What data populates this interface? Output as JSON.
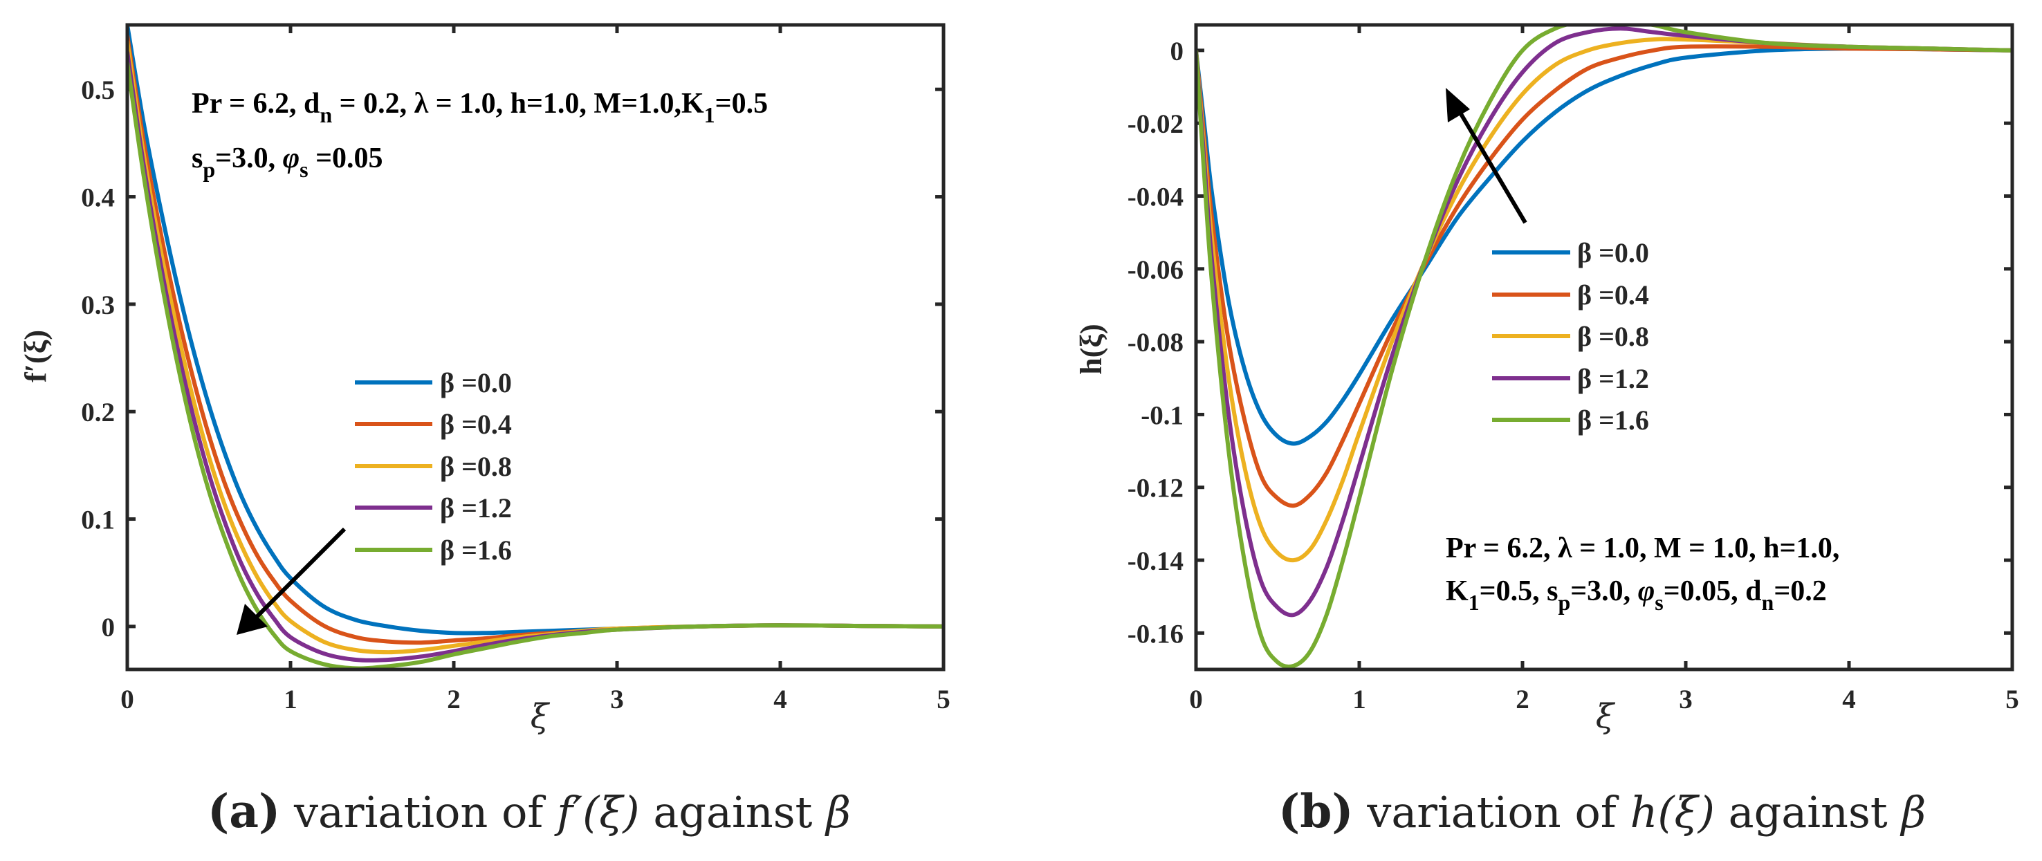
{
  "chart_data": [
    {
      "type": "line",
      "title": "",
      "xlabel": "ξ",
      "ylabel": "f′(ξ)",
      "xlim": [
        0,
        5
      ],
      "ylim": [
        -0.04,
        0.56
      ],
      "xticks": [
        "0",
        "1",
        "2",
        "3",
        "4",
        "5"
      ],
      "yticks": [
        "0",
        "0.1",
        "0.2",
        "0.3",
        "0.4",
        "0.5"
      ],
      "annotation": [
        "Pr = 6.2, d",
        "n",
        " = 0.2, λ = 1.0, h=1.0, M=1.0,K",
        "1",
        "=0.5",
        "s",
        "p",
        "=3.0, ",
        "φ",
        "s",
        " =0.05"
      ],
      "caption": {
        "label": "(a)",
        "text": " variation of ",
        "func": "f′(ξ)",
        "tail": " against ",
        "param": "β"
      },
      "legend": [
        "β =0.0",
        "β =0.4",
        "β =0.8",
        "β =1.2",
        "β =1.6"
      ],
      "series": [
        {
          "name": "β =0.0",
          "color": "#0072BD",
          "x": [
            0,
            0.1,
            0.2,
            0.3,
            0.4,
            0.5,
            0.6,
            0.7,
            0.8,
            0.9,
            1.0,
            1.2,
            1.4,
            1.6,
            1.8,
            2.0,
            2.2,
            2.4,
            2.6,
            2.8,
            3.0,
            3.5,
            4.0,
            4.5,
            5.0
          ],
          "y": [
            0.56,
            0.469,
            0.392,
            0.322,
            0.26,
            0.206,
            0.16,
            0.121,
            0.09,
            0.065,
            0.045,
            0.019,
            0.006,
            0.0,
            -0.004,
            -0.006,
            -0.006,
            -0.005,
            -0.004,
            -0.003,
            -0.002,
            0.0,
            0.001,
            0.0005,
            0.0
          ]
        },
        {
          "name": "β =0.4",
          "color": "#D95319",
          "x": [
            0,
            0.1,
            0.2,
            0.3,
            0.4,
            0.5,
            0.6,
            0.7,
            0.8,
            0.9,
            1.0,
            1.2,
            1.4,
            1.6,
            1.8,
            2.0,
            2.2,
            2.4,
            2.6,
            2.8,
            3.0,
            3.5,
            4.0,
            4.5,
            5.0
          ],
          "y": [
            0.55,
            0.452,
            0.37,
            0.297,
            0.233,
            0.178,
            0.132,
            0.095,
            0.065,
            0.042,
            0.024,
            0.001,
            -0.01,
            -0.014,
            -0.015,
            -0.013,
            -0.011,
            -0.008,
            -0.006,
            -0.004,
            -0.002,
            0.0,
            0.001,
            0.0005,
            0.0
          ]
        },
        {
          "name": "β =0.8",
          "color": "#EDB120",
          "x": [
            0,
            0.1,
            0.2,
            0.3,
            0.4,
            0.5,
            0.6,
            0.7,
            0.8,
            0.9,
            1.0,
            1.2,
            1.4,
            1.6,
            1.8,
            2.0,
            2.2,
            2.4,
            2.6,
            2.8,
            3.0,
            3.5,
            4.0,
            4.5,
            5.0
          ],
          "y": [
            0.545,
            0.44,
            0.354,
            0.28,
            0.214,
            0.158,
            0.112,
            0.075,
            0.045,
            0.022,
            0.005,
            -0.014,
            -0.022,
            -0.024,
            -0.022,
            -0.018,
            -0.014,
            -0.01,
            -0.007,
            -0.004,
            -0.002,
            0.0,
            0.001,
            0.0005,
            0.0
          ]
        },
        {
          "name": "β =1.2",
          "color": "#7E2F8E",
          "x": [
            0,
            0.1,
            0.2,
            0.3,
            0.4,
            0.5,
            0.6,
            0.7,
            0.8,
            0.9,
            1.0,
            1.2,
            1.4,
            1.6,
            1.8,
            2.0,
            2.2,
            2.4,
            2.6,
            2.8,
            3.0,
            3.5,
            4.0,
            4.5,
            5.0
          ],
          "y": [
            0.535,
            0.43,
            0.341,
            0.264,
            0.198,
            0.142,
            0.096,
            0.058,
            0.029,
            0.007,
            -0.01,
            -0.025,
            -0.031,
            -0.031,
            -0.028,
            -0.023,
            -0.017,
            -0.012,
            -0.008,
            -0.005,
            -0.003,
            0.0,
            0.001,
            0.0005,
            0.0
          ]
        },
        {
          "name": "β =1.6",
          "color": "#77AC30",
          "x": [
            0,
            0.1,
            0.2,
            0.3,
            0.4,
            0.5,
            0.6,
            0.7,
            0.8,
            0.9,
            1.0,
            1.2,
            1.4,
            1.6,
            1.8,
            2.0,
            2.2,
            2.4,
            2.6,
            2.8,
            3.0,
            3.5,
            4.0,
            4.5,
            5.0
          ],
          "y": [
            0.525,
            0.42,
            0.329,
            0.25,
            0.182,
            0.126,
            0.081,
            0.043,
            0.014,
            -0.008,
            -0.023,
            -0.035,
            -0.039,
            -0.037,
            -0.033,
            -0.026,
            -0.02,
            -0.014,
            -0.009,
            -0.006,
            -0.003,
            0.0,
            0.001,
            0.0005,
            0.0
          ]
        }
      ]
    },
    {
      "type": "line",
      "title": "",
      "xlabel": "ξ",
      "ylabel": "h(ξ)",
      "xlim": [
        0,
        5
      ],
      "ylim": [
        -0.17,
        0.007
      ],
      "xticks": [
        "0",
        "1",
        "2",
        "3",
        "4",
        "5"
      ],
      "yticks": [
        "0",
        "-0.02",
        "-0.04",
        "-0.06",
        "-0.08",
        "-0.1",
        "-0.12",
        "-0.14",
        "-0.16"
      ],
      "annotation": [
        "Pr = 6.2, λ = 1.0, M = 1.0, h=1.0,",
        "K",
        "1",
        "=0.5, s",
        "p",
        "=3.0, ",
        "φ",
        "s",
        "=0.05, d",
        "n",
        "=0.2"
      ],
      "caption": {
        "label": "(b)",
        "text": " variation of ",
        "func": "h(ξ)",
        "tail": " against ",
        "param": "β"
      },
      "legend": [
        "β =0.0",
        "β =0.4",
        "β =0.8",
        "β =1.2",
        "β =1.6"
      ],
      "series": [
        {
          "name": "β =0.0",
          "color": "#0072BD",
          "x": [
            0,
            0.05,
            0.1,
            0.2,
            0.3,
            0.4,
            0.5,
            0.6,
            0.7,
            0.8,
            0.9,
            1.0,
            1.2,
            1.4,
            1.6,
            1.8,
            2.0,
            2.2,
            2.4,
            2.6,
            2.8,
            3.0,
            3.5,
            4.0,
            4.5,
            5.0
          ],
          "y": [
            0,
            -0.02,
            -0.04,
            -0.069,
            -0.088,
            -0.1,
            -0.106,
            -0.108,
            -0.106,
            -0.102,
            -0.096,
            -0.089,
            -0.074,
            -0.06,
            -0.046,
            -0.035,
            -0.025,
            -0.017,
            -0.011,
            -0.007,
            -0.004,
            -0.002,
            0.0,
            0.0005,
            0.0003,
            0.0
          ]
        },
        {
          "name": "β =0.4",
          "color": "#D95319",
          "x": [
            0,
            0.05,
            0.1,
            0.2,
            0.3,
            0.4,
            0.5,
            0.6,
            0.7,
            0.8,
            0.9,
            1.0,
            1.2,
            1.4,
            1.6,
            1.8,
            2.0,
            2.2,
            2.4,
            2.6,
            2.8,
            3.0,
            3.5,
            4.0,
            4.5,
            5.0
          ],
          "y": [
            0,
            -0.024,
            -0.047,
            -0.08,
            -0.102,
            -0.117,
            -0.123,
            -0.125,
            -0.122,
            -0.116,
            -0.107,
            -0.097,
            -0.077,
            -0.059,
            -0.043,
            -0.03,
            -0.019,
            -0.011,
            -0.005,
            -0.002,
            0.0,
            0.001,
            0.001,
            0.0005,
            0.0003,
            0.0
          ]
        },
        {
          "name": "β =0.8",
          "color": "#EDB120",
          "x": [
            0,
            0.05,
            0.1,
            0.2,
            0.3,
            0.4,
            0.5,
            0.6,
            0.7,
            0.8,
            0.9,
            1.0,
            1.2,
            1.4,
            1.6,
            1.8,
            2.0,
            2.2,
            2.4,
            2.6,
            2.8,
            3.0,
            3.5,
            4.0,
            4.5,
            5.0
          ],
          "y": [
            0,
            -0.027,
            -0.053,
            -0.09,
            -0.115,
            -0.131,
            -0.138,
            -0.14,
            -0.137,
            -0.129,
            -0.118,
            -0.105,
            -0.08,
            -0.058,
            -0.039,
            -0.024,
            -0.012,
            -0.004,
            0.0,
            0.002,
            0.003,
            0.003,
            0.002,
            0.001,
            0.0005,
            0.0
          ]
        },
        {
          "name": "β =1.2",
          "color": "#7E2F8E",
          "x": [
            0,
            0.05,
            0.1,
            0.2,
            0.3,
            0.4,
            0.5,
            0.6,
            0.7,
            0.8,
            0.9,
            1.0,
            1.2,
            1.4,
            1.6,
            1.8,
            2.0,
            2.2,
            2.4,
            2.6,
            2.8,
            3.0,
            3.5,
            4.0,
            4.5,
            5.0
          ],
          "y": [
            0,
            -0.03,
            -0.059,
            -0.1,
            -0.128,
            -0.146,
            -0.153,
            -0.155,
            -0.151,
            -0.142,
            -0.129,
            -0.114,
            -0.084,
            -0.058,
            -0.036,
            -0.019,
            -0.006,
            0.002,
            0.005,
            0.006,
            0.005,
            0.004,
            0.002,
            0.001,
            0.0005,
            0.0
          ]
        },
        {
          "name": "β =1.6",
          "color": "#77AC30",
          "x": [
            0,
            0.05,
            0.1,
            0.2,
            0.3,
            0.4,
            0.5,
            0.6,
            0.7,
            0.8,
            0.9,
            1.0,
            1.2,
            1.4,
            1.6,
            1.8,
            2.0,
            2.2,
            2.4,
            2.6,
            2.8,
            3.0,
            3.5,
            4.0,
            4.5,
            5.0
          ],
          "y": [
            0,
            -0.034,
            -0.065,
            -0.11,
            -0.141,
            -0.161,
            -0.168,
            -0.169,
            -0.165,
            -0.155,
            -0.14,
            -0.123,
            -0.088,
            -0.058,
            -0.033,
            -0.014,
            0.0,
            0.006,
            0.008,
            0.008,
            0.007,
            0.005,
            0.002,
            0.001,
            0.0005,
            0.0
          ]
        }
      ]
    }
  ]
}
